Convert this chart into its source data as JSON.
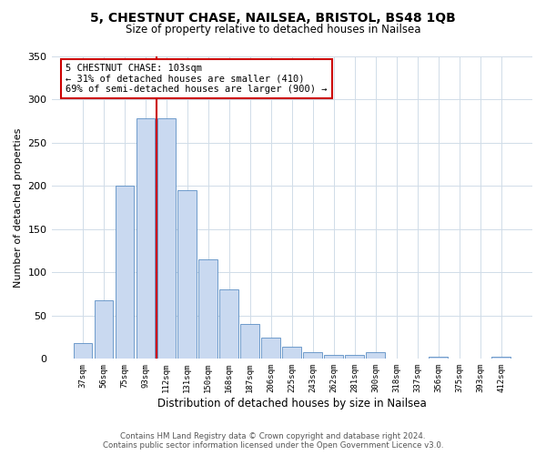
{
  "title": "5, CHESTNUT CHASE, NAILSEA, BRISTOL, BS48 1QB",
  "subtitle": "Size of property relative to detached houses in Nailsea",
  "xlabel": "Distribution of detached houses by size in Nailsea",
  "ylabel": "Number of detached properties",
  "bar_labels": [
    "37sqm",
    "56sqm",
    "75sqm",
    "93sqm",
    "112sqm",
    "131sqm",
    "150sqm",
    "168sqm",
    "187sqm",
    "206sqm",
    "225sqm",
    "243sqm",
    "262sqm",
    "281sqm",
    "300sqm",
    "318sqm",
    "337sqm",
    "356sqm",
    "375sqm",
    "393sqm",
    "412sqm"
  ],
  "bar_values": [
    18,
    68,
    200,
    278,
    278,
    195,
    115,
    80,
    40,
    25,
    14,
    8,
    5,
    5,
    8,
    0,
    0,
    2,
    0,
    0,
    2
  ],
  "bar_color": "#c9d9f0",
  "bar_edge_color": "#5b8ec4",
  "annotation_line_label": "5 CHESTNUT CHASE: 103sqm",
  "annotation_line1": "← 31% of detached houses are smaller (410)",
  "annotation_line2": "69% of semi-detached houses are larger (900) →",
  "annotation_box_color": "#ffffff",
  "annotation_box_edge": "#cc0000",
  "line_color": "#cc0000",
  "ylim": [
    0,
    350
  ],
  "yticks": [
    0,
    50,
    100,
    150,
    200,
    250,
    300,
    350
  ],
  "footer1": "Contains HM Land Registry data © Crown copyright and database right 2024.",
  "footer2": "Contains public sector information licensed under the Open Government Licence v3.0.",
  "bg_color": "#ffffff",
  "grid_color": "#d0dce8"
}
